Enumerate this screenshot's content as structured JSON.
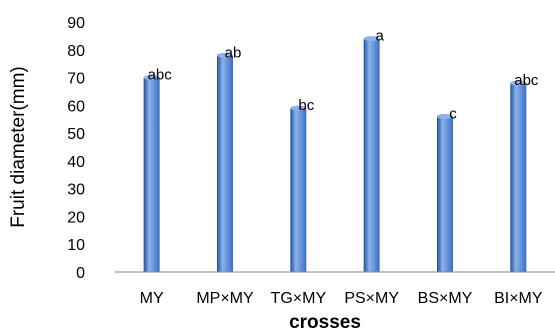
{
  "chart_data": {
    "type": "bar",
    "categories": [
      "MY",
      "MP×MY",
      "TG×MY",
      "PS×MY",
      "BS×MY",
      "BI×MY"
    ],
    "values": [
      70,
      78,
      59,
      84,
      56,
      68
    ],
    "data_labels": [
      "abc",
      "ab",
      "bc",
      "a",
      "c",
      "abc"
    ],
    "xlabel": "crosses",
    "ylabel": "Fruit diameter(mm)",
    "ylim": [
      0,
      90
    ],
    "yticks": [
      0,
      10,
      20,
      30,
      40,
      50,
      60,
      70,
      80,
      90
    ],
    "grid": false,
    "bar_color": "#3a6fc4",
    "bar_color_dark": "#1f4f9c",
    "bar_color_light": "#8db3ea"
  }
}
